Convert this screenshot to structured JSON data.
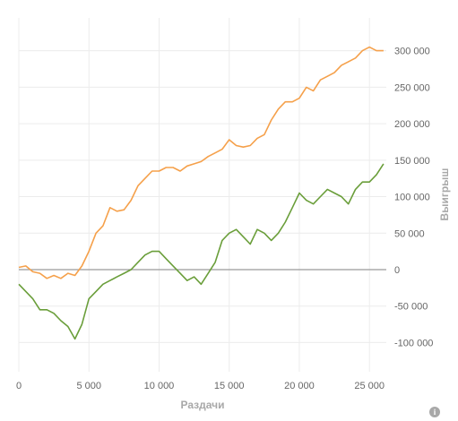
{
  "chart_data": {
    "type": "line",
    "xlabel": "Раздачи",
    "ylabel": "Выигрыш",
    "xlim": [
      0,
      26200
    ],
    "ylim": [
      -140000,
      345000
    ],
    "x_ticks": [
      0,
      5000,
      10000,
      15000,
      20000,
      25000
    ],
    "x_tick_labels": [
      "0",
      "5 000",
      "10 000",
      "15 000",
      "20 000",
      "25 000"
    ],
    "y_ticks": [
      300000,
      250000,
      200000,
      150000,
      100000,
      50000,
      0,
      -50000,
      -100000
    ],
    "y_tick_labels": [
      "300 000",
      "250 000",
      "200 000",
      "150 000",
      "100 000",
      "50 000",
      "0",
      "-50 000",
      "-100 000"
    ],
    "grid": true,
    "legend": "none",
    "series": [
      {
        "color": "#f5a04a",
        "x": [
          0,
          500,
          1000,
          1500,
          2000,
          2500,
          3000,
          3500,
          4000,
          4500,
          5000,
          5500,
          6000,
          6500,
          7000,
          7500,
          8000,
          8500,
          9000,
          9500,
          10000,
          10500,
          11000,
          11500,
          12000,
          12500,
          13000,
          13500,
          14000,
          14500,
          15000,
          15500,
          16000,
          16500,
          17000,
          17500,
          18000,
          18500,
          19000,
          19500,
          20000,
          20500,
          21000,
          21500,
          22000,
          22500,
          23000,
          23500,
          24000,
          24500,
          25000,
          25500,
          26000
        ],
        "y": [
          3000,
          5000,
          -3000,
          -5000,
          -12000,
          -8000,
          -12000,
          -5000,
          -8000,
          5000,
          25000,
          50000,
          60000,
          85000,
          80000,
          82000,
          95000,
          115000,
          125000,
          135000,
          135000,
          140000,
          140000,
          135000,
          142000,
          145000,
          148000,
          155000,
          160000,
          165000,
          178000,
          170000,
          168000,
          170000,
          180000,
          185000,
          205000,
          220000,
          230000,
          230000,
          235000,
          250000,
          245000,
          260000,
          265000,
          270000,
          280000,
          285000,
          290000,
          300000,
          305000,
          300000,
          300000
        ]
      },
      {
        "color": "#6a9e3a",
        "x": [
          0,
          500,
          1000,
          1500,
          2000,
          2500,
          3000,
          3500,
          4000,
          4500,
          5000,
          5500,
          6000,
          6500,
          7000,
          7500,
          8000,
          8500,
          9000,
          9500,
          10000,
          10500,
          11000,
          11500,
          12000,
          12500,
          13000,
          13500,
          14000,
          14500,
          15000,
          15500,
          16000,
          16500,
          17000,
          17500,
          18000,
          18500,
          19000,
          19500,
          20000,
          20500,
          21000,
          21500,
          22000,
          22500,
          23000,
          23500,
          24000,
          24500,
          25000,
          25500,
          26000
        ],
        "y": [
          -20000,
          -30000,
          -40000,
          -55000,
          -55000,
          -60000,
          -70000,
          -78000,
          -95000,
          -75000,
          -40000,
          -30000,
          -20000,
          -15000,
          -10000,
          -5000,
          0,
          10000,
          20000,
          25000,
          25000,
          15000,
          5000,
          -5000,
          -15000,
          -10000,
          -20000,
          -5000,
          10000,
          40000,
          50000,
          55000,
          45000,
          35000,
          55000,
          50000,
          40000,
          50000,
          65000,
          85000,
          105000,
          95000,
          90000,
          100000,
          110000,
          105000,
          100000,
          90000,
          110000,
          120000,
          120000,
          130000,
          145000
        ]
      }
    ]
  }
}
